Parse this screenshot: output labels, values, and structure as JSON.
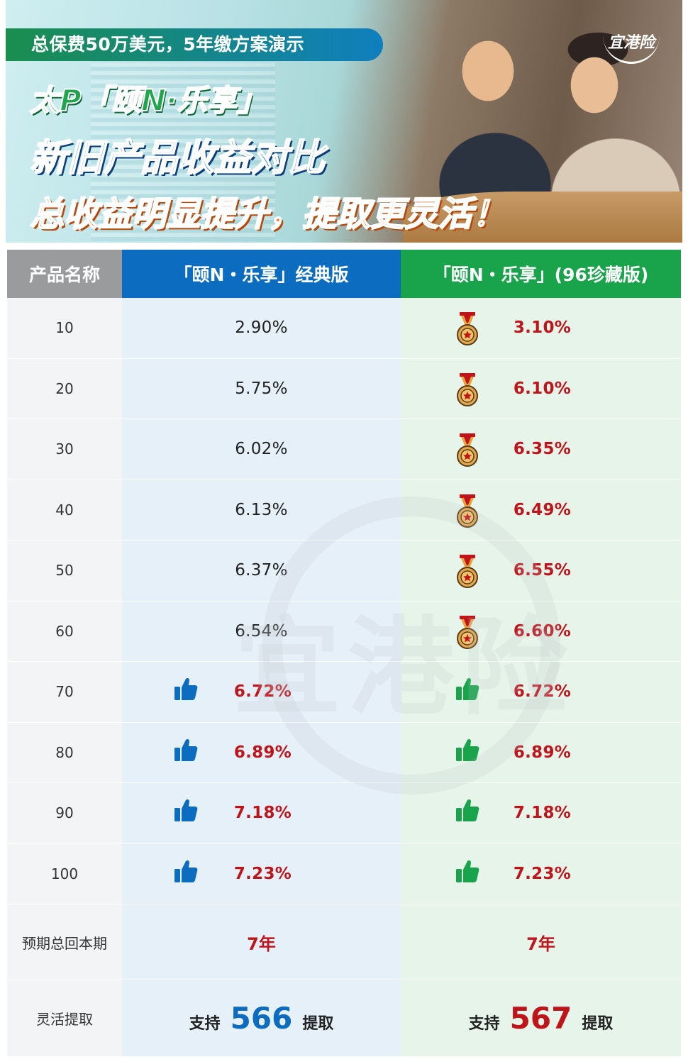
{
  "banner": {
    "pill_text": "总保费50万美元，5年缴方案演示",
    "title_line1": "太P「颐N·乐享」",
    "title_line2": "新旧产品收益对比",
    "title_line3": "总收益明显提升，提取更灵活！",
    "logo_text": "宜港险"
  },
  "table": {
    "headers": {
      "name": "产品名称",
      "classic": "「颐N・乐享」经典版",
      "collector": "「颐N・乐享」(96珍藏版)"
    },
    "rows": [
      {
        "year": "10",
        "classic": "2.90%",
        "collector": "3.10%"
      },
      {
        "year": "20",
        "classic": "5.75%",
        "collector": "6.10%"
      },
      {
        "year": "30",
        "classic": "6.02%",
        "collector": "6.35%"
      },
      {
        "year": "40",
        "classic": "6.13%",
        "collector": "6.49%"
      },
      {
        "year": "50",
        "classic": "6.37%",
        "collector": "6.55%"
      },
      {
        "year": "60",
        "classic": "6.54%",
        "collector": "6.60%"
      },
      {
        "year": "70",
        "classic": "6.72%",
        "collector": "6.72%"
      },
      {
        "year": "80",
        "classic": "6.89%",
        "collector": "6.89%"
      },
      {
        "year": "90",
        "classic": "7.18%",
        "collector": "7.18%"
      },
      {
        "year": "100",
        "classic": "7.23%",
        "collector": "7.23%"
      }
    ],
    "payback": {
      "label": "预期总回本期",
      "classic": "7年",
      "collector": "7年"
    },
    "withdraw": {
      "label": "灵活提取",
      "prefix": "支持",
      "suffix": "提取",
      "classic_num": "566",
      "collector_num": "567"
    }
  },
  "watermark": {
    "text": "宜港险"
  },
  "colors": {
    "blue": "#0b6cc0",
    "green": "#19a44b",
    "red": "#c0141b",
    "gray": "#9a9b9d"
  },
  "icons": {
    "medal": "medal-icon",
    "thumbs_blue": "thumbs-up-icon",
    "thumbs_green": "thumbs-up-icon"
  }
}
